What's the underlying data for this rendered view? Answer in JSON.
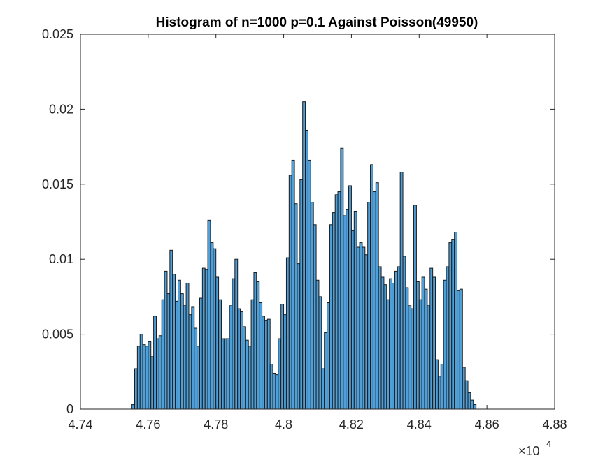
{
  "chart_data": {
    "type": "bar",
    "title": "Histogram of n=1000 p=0.1 Against Poisson(49950)",
    "xlabel": "",
    "ylabel": "",
    "x_exponent_label": {
      "prefix": "×10",
      "power": "4"
    },
    "xlim": [
      4.74,
      4.88
    ],
    "ylim": [
      0,
      0.025
    ],
    "x_ticks": [
      "4.74",
      "4.76",
      "4.78",
      "4.8",
      "4.82",
      "4.84",
      "4.86",
      "4.88"
    ],
    "y_ticks": [
      "0",
      "0.005",
      "0.01",
      "0.015",
      "0.02",
      "0.025"
    ],
    "x_tick_values": [
      4.74,
      4.76,
      4.78,
      4.8,
      4.82,
      4.84,
      4.86,
      4.88
    ],
    "y_tick_values": [
      0,
      0.005,
      0.01,
      0.015,
      0.02,
      0.025
    ],
    "bin_start": 4.7552,
    "bin_width": 0.0008,
    "values": [
      0.0003,
      0.0027,
      0.0042,
      0.005,
      0.0043,
      0.0042,
      0.0045,
      0.0035,
      0.0062,
      0.0047,
      0.0049,
      0.0073,
      0.0092,
      0.0077,
      0.0106,
      0.009,
      0.0072,
      0.0086,
      0.0077,
      0.0069,
      0.0084,
      0.0063,
      0.0068,
      0.0054,
      0.0042,
      0.0074,
      0.0094,
      0.0093,
      0.0126,
      0.0111,
      0.0107,
      0.0088,
      0.0073,
      0.0047,
      0.0047,
      0.0047,
      0.0069,
      0.0087,
      0.01,
      0.0067,
      0.0065,
      0.0055,
      0.0046,
      0.0042,
      0.0073,
      0.0091,
      0.0085,
      0.0071,
      0.0062,
      0.0059,
      0.006,
      0.003,
      0.0024,
      0.0023,
      0.0047,
      0.007,
      0.0063,
      0.0101,
      0.0156,
      0.0166,
      0.0137,
      0.0097,
      0.0153,
      0.0205,
      0.0186,
      0.0166,
      0.0138,
      0.0123,
      0.0086,
      0.0075,
      0.0027,
      0.0051,
      0.0071,
      0.0123,
      0.0131,
      0.0143,
      0.0145,
      0.0174,
      0.0129,
      0.0133,
      0.0149,
      0.0119,
      0.0132,
      0.0108,
      0.0111,
      0.0108,
      0.0103,
      0.0138,
      0.0163,
      0.0145,
      0.0151,
      0.0095,
      0.0088,
      0.0083,
      0.0073,
      0.0087,
      0.0084,
      0.0092,
      0.0095,
      0.0158,
      0.0102,
      0.0081,
      0.0069,
      0.0067,
      0.0136,
      0.0085,
      0.0073,
      0.0088,
      0.008,
      0.0069,
      0.0094,
      0.0088,
      0.0033,
      0.0022,
      0.003,
      0.0086,
      0.0095,
      0.0111,
      0.0113,
      0.0118,
      0.0079,
      0.008,
      0.0028,
      0.0019,
      0.0011,
      0.0006,
      0.0003
    ],
    "bar_fill": "#4f9fd8",
    "bar_stroke": "#1a1a1a",
    "grid": false,
    "legend": "none"
  }
}
